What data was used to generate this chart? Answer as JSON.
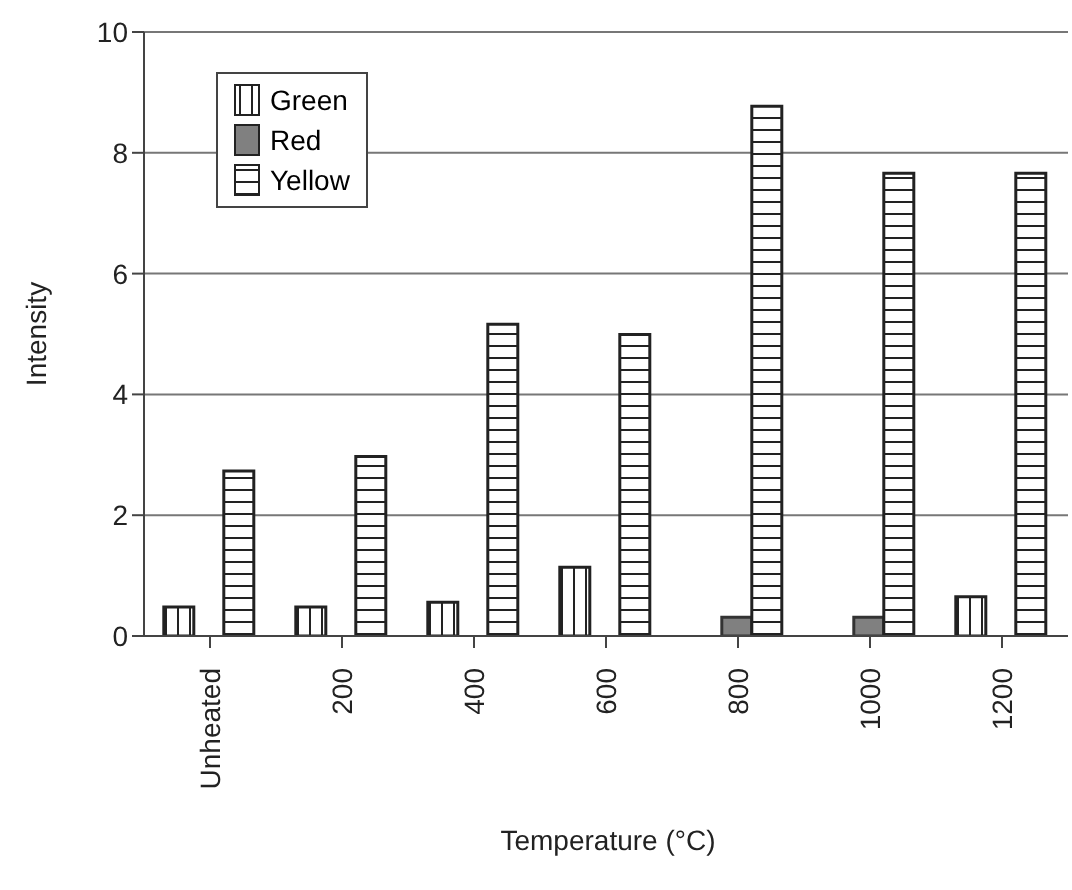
{
  "chart_data": {
    "type": "bar",
    "xlabel": "Temperature (°C)",
    "ylabel": "Intensity",
    "categories": [
      "Unheated",
      "200",
      "400",
      "600",
      "800",
      "1000",
      "1200"
    ],
    "series": [
      {
        "name": "Green",
        "color": "#222222",
        "values": [
          0.48,
          0.48,
          0.56,
          1.14,
          null,
          null,
          0.65
        ]
      },
      {
        "name": "Red",
        "color": "#808080",
        "values": [
          null,
          null,
          null,
          null,
          0.31,
          0.31,
          null
        ]
      },
      {
        "name": "Yellow",
        "color": "#222222",
        "values": [
          2.73,
          2.97,
          5.16,
          4.99,
          8.77,
          7.66,
          7.66
        ]
      }
    ],
    "ylim": [
      0,
      10
    ],
    "yticks": [
      0,
      2,
      4,
      6,
      8,
      10
    ],
    "grid": "y",
    "legend": "top left"
  }
}
